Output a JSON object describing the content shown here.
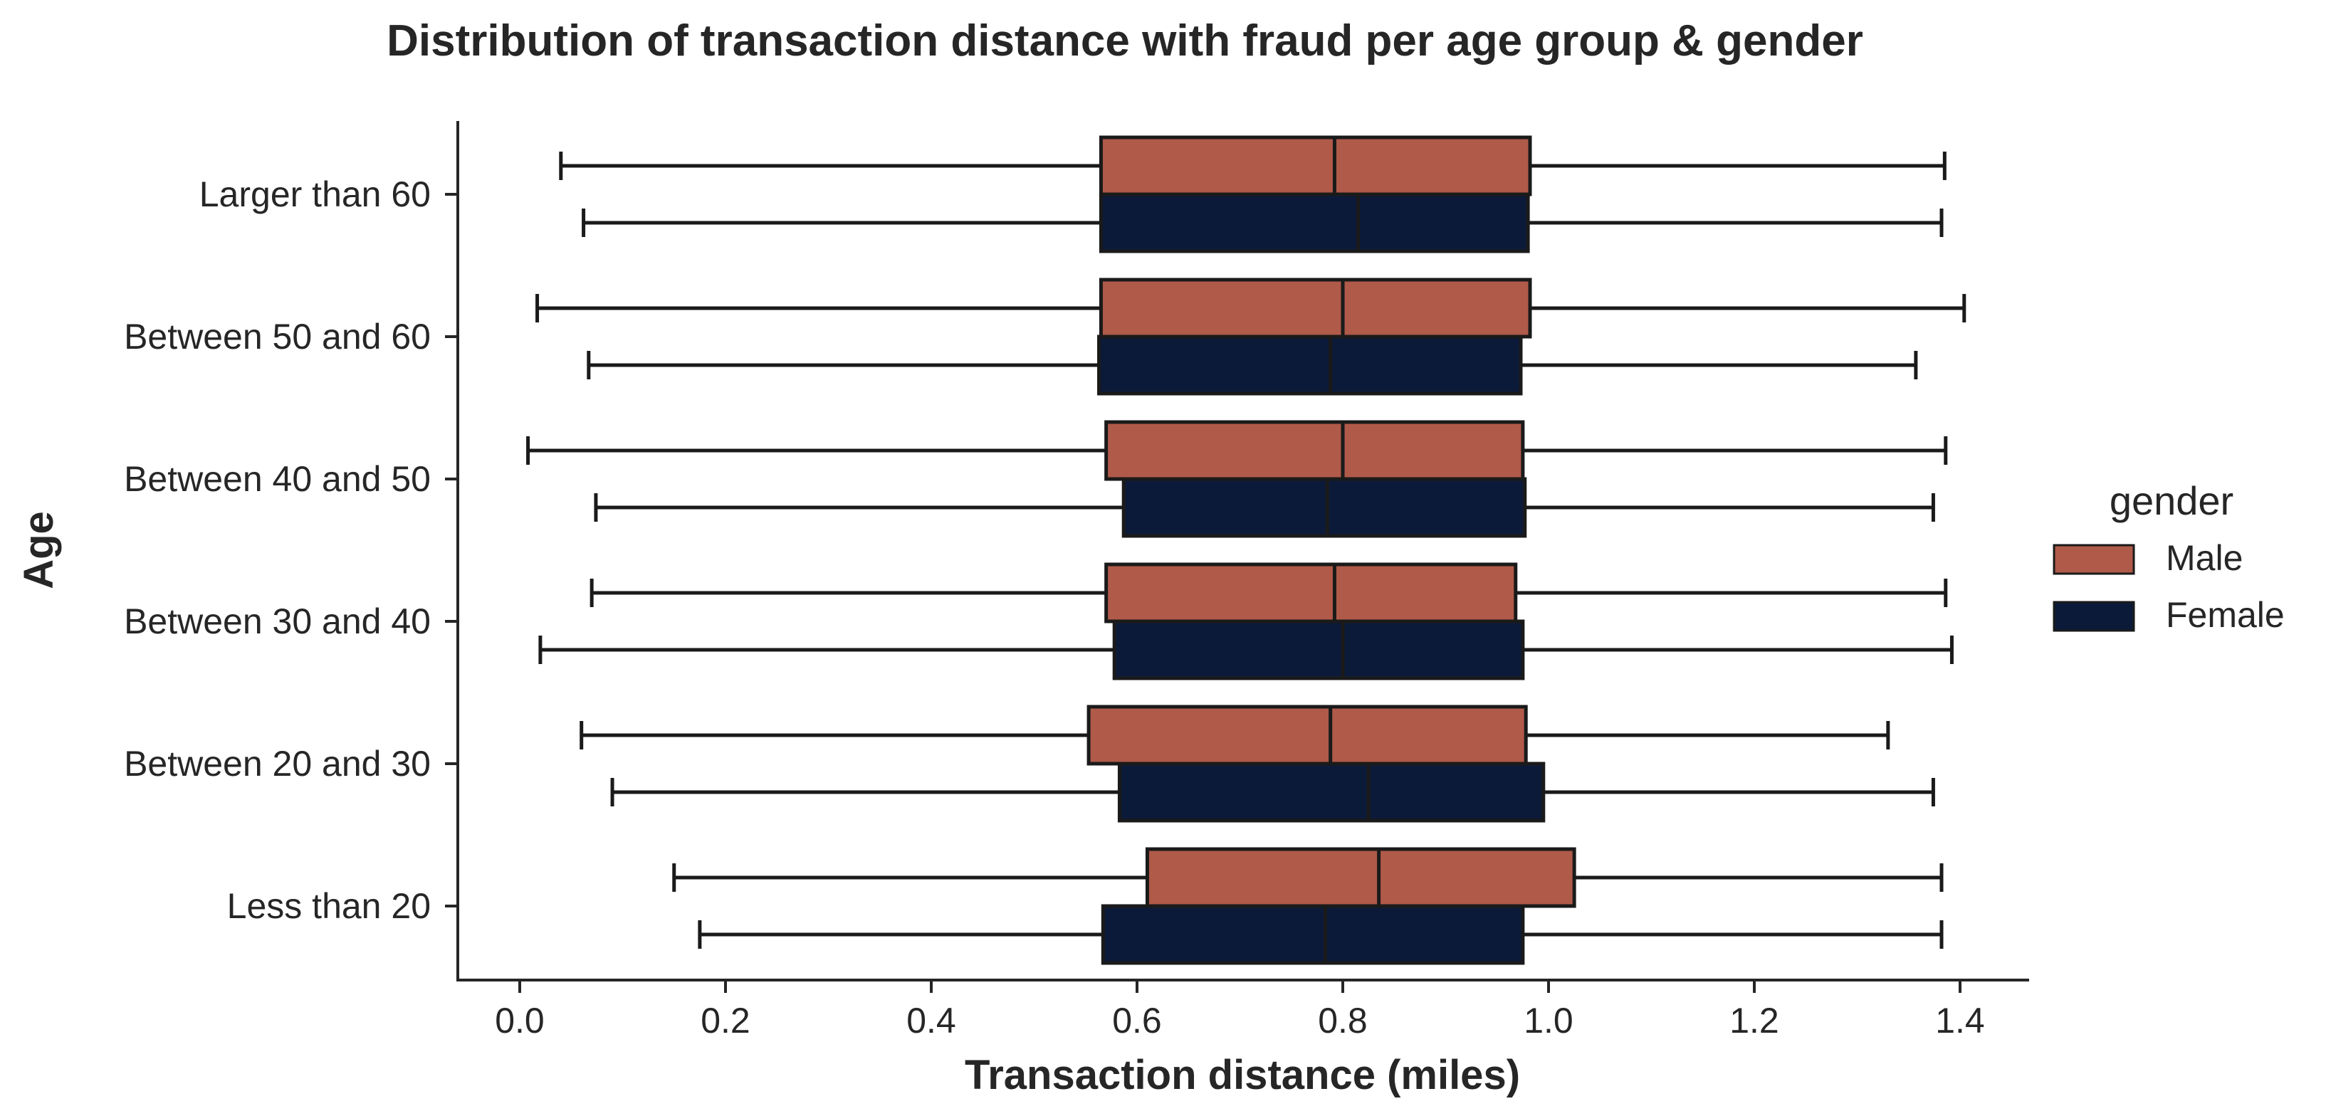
{
  "chart_data": {
    "type": "boxplot",
    "orientation": "horizontal",
    "title": "Distribution of transaction distance with fraud per age group & gender",
    "xlabel": "Transaction distance (miles)",
    "ylabel": "Age",
    "xlim": [
      -0.06,
      1.47
    ],
    "xticks": [
      0.0,
      0.2,
      0.4,
      0.6,
      0.8,
      1.0,
      1.2,
      1.4
    ],
    "categories": [
      "Larger than 60",
      "Between 50 and 60",
      "Between 40 and 50",
      "Between 30 and 40",
      "Between 20 and 30",
      "Less than 20"
    ],
    "legend": {
      "title": "gender",
      "placement": "center-right"
    },
    "grid": false,
    "series": [
      {
        "name": "Male",
        "color": "#b05a4a",
        "boxes": [
          {
            "whislo": 0.04,
            "q1": 0.565,
            "med": 0.792,
            "q3": 0.982,
            "whishi": 1.385
          },
          {
            "whislo": 0.017,
            "q1": 0.565,
            "med": 0.8,
            "q3": 0.982,
            "whishi": 1.404
          },
          {
            "whislo": 0.008,
            "q1": 0.57,
            "med": 0.8,
            "q3": 0.975,
            "whishi": 1.386
          },
          {
            "whislo": 0.07,
            "q1": 0.57,
            "med": 0.792,
            "q3": 0.968,
            "whishi": 1.386
          },
          {
            "whislo": 0.06,
            "q1": 0.553,
            "med": 0.788,
            "q3": 0.978,
            "whishi": 1.33
          },
          {
            "whislo": 0.15,
            "q1": 0.61,
            "med": 0.835,
            "q3": 1.025,
            "whishi": 1.382
          }
        ]
      },
      {
        "name": "Female",
        "color": "#0c1a3a",
        "boxes": [
          {
            "whislo": 0.062,
            "q1": 0.565,
            "med": 0.815,
            "q3": 0.98,
            "whishi": 1.382
          },
          {
            "whislo": 0.067,
            "q1": 0.563,
            "med": 0.788,
            "q3": 0.973,
            "whishi": 1.357
          },
          {
            "whislo": 0.074,
            "q1": 0.587,
            "med": 0.785,
            "q3": 0.977,
            "whishi": 1.374
          },
          {
            "whislo": 0.02,
            "q1": 0.578,
            "med": 0.8,
            "q3": 0.975,
            "whishi": 1.392
          },
          {
            "whislo": 0.09,
            "q1": 0.583,
            "med": 0.825,
            "q3": 0.995,
            "whishi": 1.374
          },
          {
            "whislo": 0.175,
            "q1": 0.567,
            "med": 0.783,
            "q3": 0.975,
            "whishi": 1.382
          }
        ]
      }
    ]
  }
}
